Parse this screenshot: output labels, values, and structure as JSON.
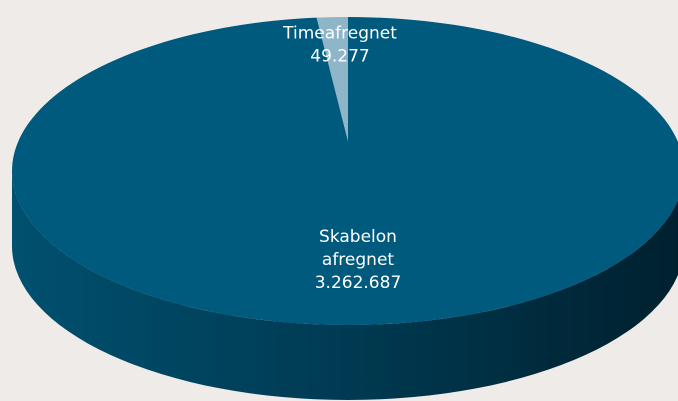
{
  "chart_data": {
    "type": "pie",
    "categories": [
      "Skabelon afregnet",
      "Timeafregnet"
    ],
    "values": [
      3262687,
      49277
    ],
    "value_labels": [
      "3.262.687",
      "49.277"
    ],
    "colors": [
      "#005a7e",
      "#8fb5c8"
    ]
  }
}
